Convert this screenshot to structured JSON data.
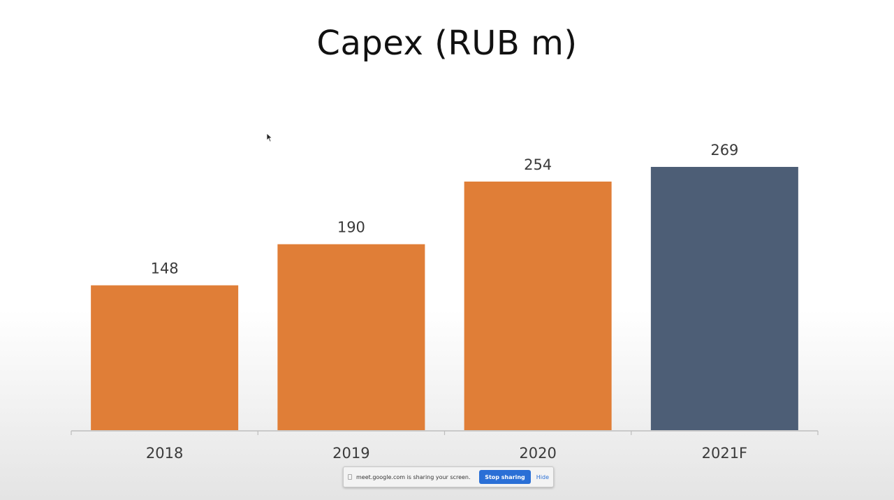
{
  "chart_data": {
    "type": "bar",
    "title": "Capex (RUB m)",
    "categories": [
      "2018",
      "2019",
      "2020",
      "2021F"
    ],
    "values": [
      148,
      190,
      254,
      269
    ],
    "data_labels": [
      "148",
      "190",
      "254",
      "269"
    ],
    "bar_colors": [
      "#e07e37",
      "#e07e37",
      "#e07e37",
      "#4d5e76"
    ],
    "xlabel": "",
    "ylabel": "",
    "ylim": [
      0,
      300
    ],
    "grid": false,
    "legend": "none"
  },
  "share_bar": {
    "message": "meet.google.com is sharing your screen.",
    "stop_label": "Stop sharing",
    "hide_label": "Hide"
  }
}
